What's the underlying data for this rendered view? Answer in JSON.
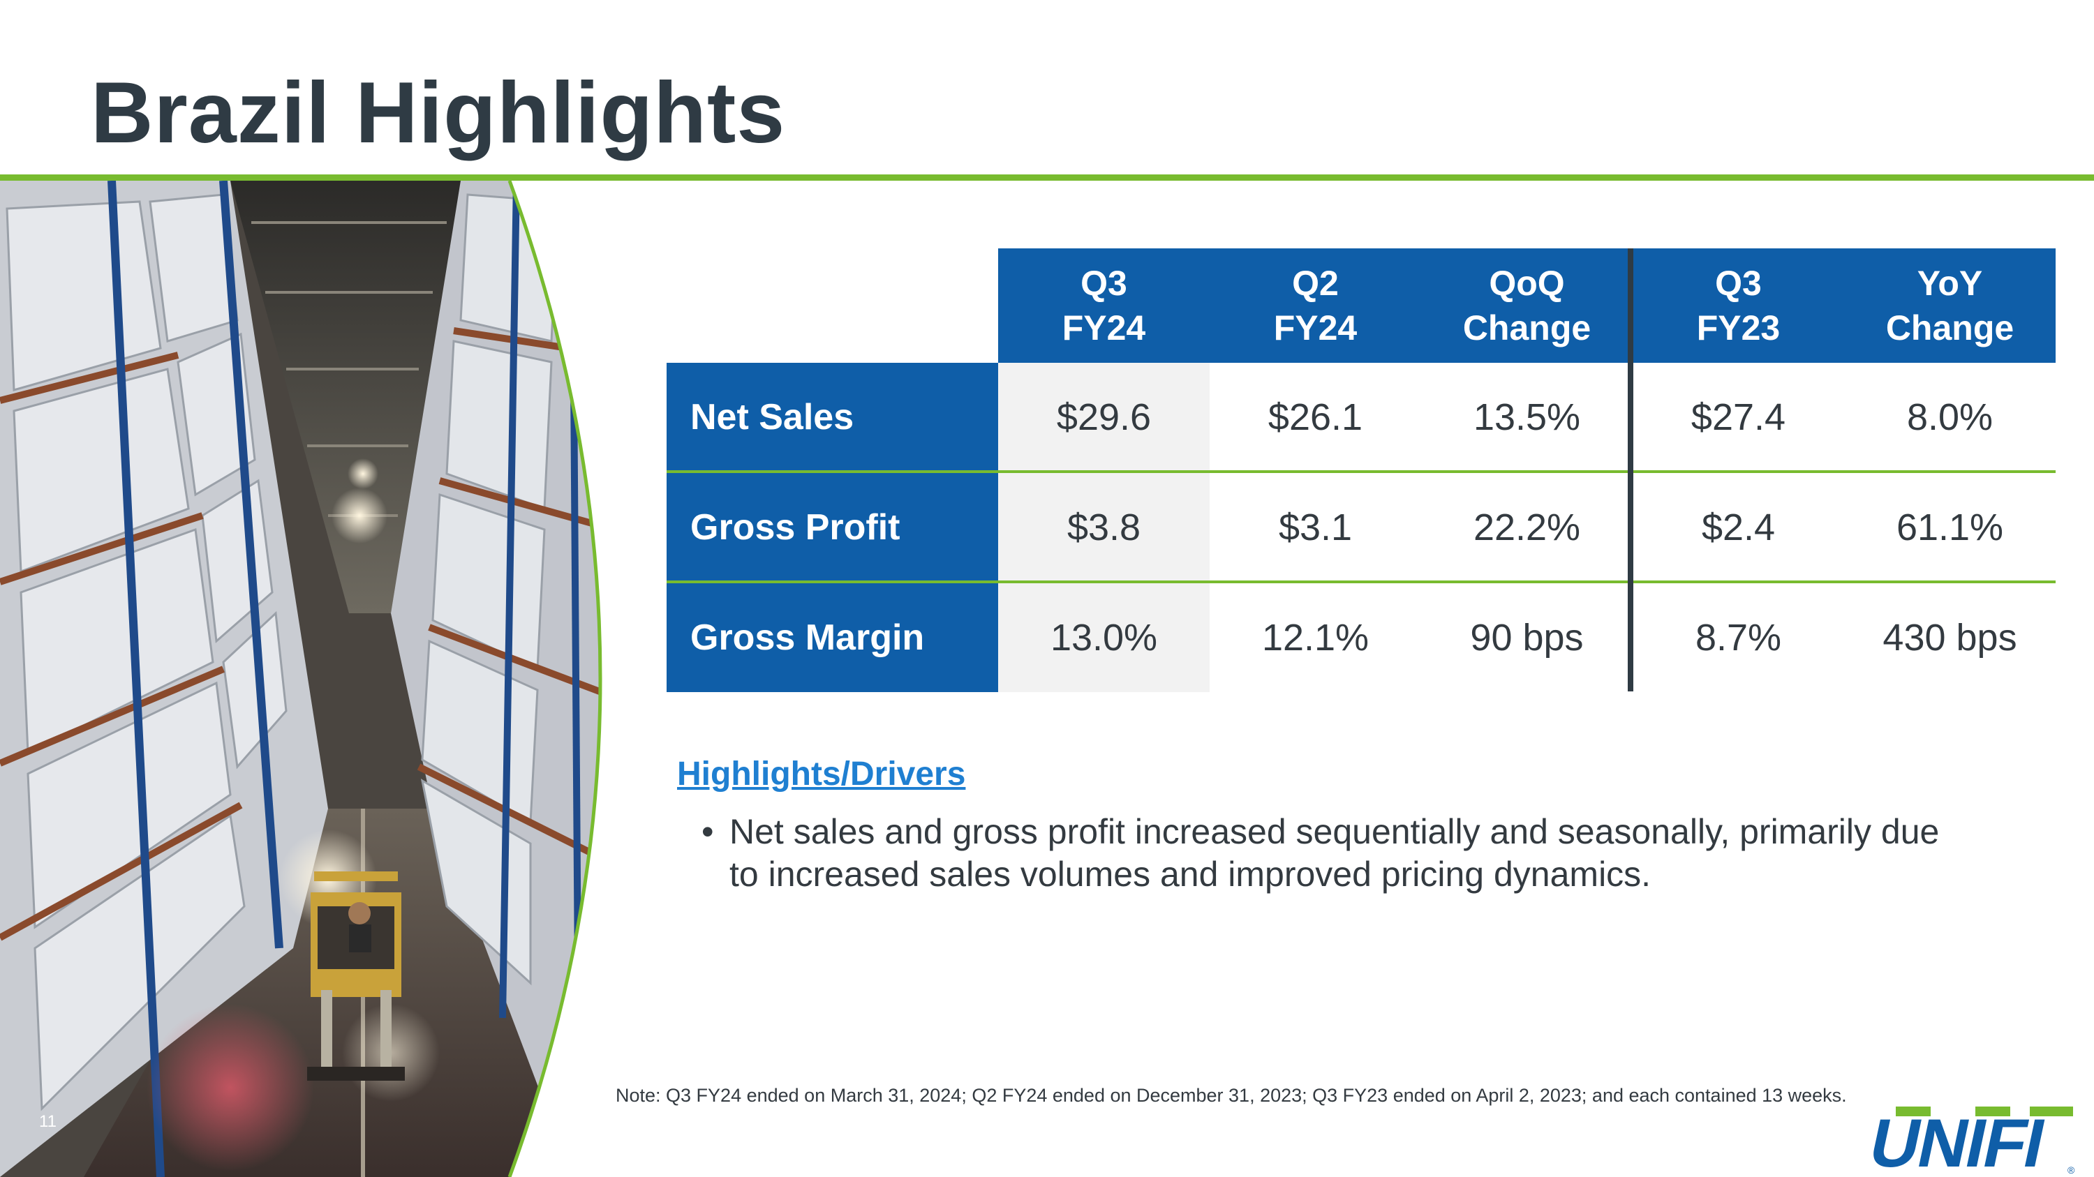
{
  "slide": {
    "title": "Brazil Highlights",
    "page_number": "11"
  },
  "table": {
    "columns": [
      {
        "line1": "Q3",
        "line2": "FY24"
      },
      {
        "line1": "Q2",
        "line2": "FY24"
      },
      {
        "line1": "QoQ",
        "line2": "Change"
      },
      {
        "line1": "Q3",
        "line2": "FY23"
      },
      {
        "line1": "YoY",
        "line2": "Change"
      }
    ],
    "rows": [
      {
        "label": "Net Sales",
        "values": [
          "$29.6",
          "$26.1",
          "13.5%",
          "$27.4",
          "8.0%"
        ]
      },
      {
        "label": "Gross Profit",
        "values": [
          "$3.8",
          "$3.1",
          "22.2%",
          "$2.4",
          "61.1%"
        ]
      },
      {
        "label": "Gross Margin",
        "values": [
          "13.0%",
          "12.1%",
          "90 bps",
          "8.7%",
          "430 bps"
        ]
      }
    ]
  },
  "highlights": {
    "heading": "Highlights/Drivers",
    "bullets": [
      "Net sales and gross profit increased sequentially and seasonally, primarily due to increased sales volumes and improved pricing dynamics."
    ]
  },
  "note": "Note: Q3 FY24 ended on March 31, 2024; Q2 FY24 ended on December 31, 2023; Q3 FY23 ended on April 2, 2023; and each contained 13 weeks.",
  "logo": {
    "text": "UNIFI",
    "mark": "®"
  },
  "colors": {
    "title": "#2f3b44",
    "accent_green": "#78bb2f",
    "header_blue": "#0f5ea8",
    "link_blue": "#1f7fd1",
    "body_text": "#333a40",
    "shade": "#f2f2f2"
  }
}
